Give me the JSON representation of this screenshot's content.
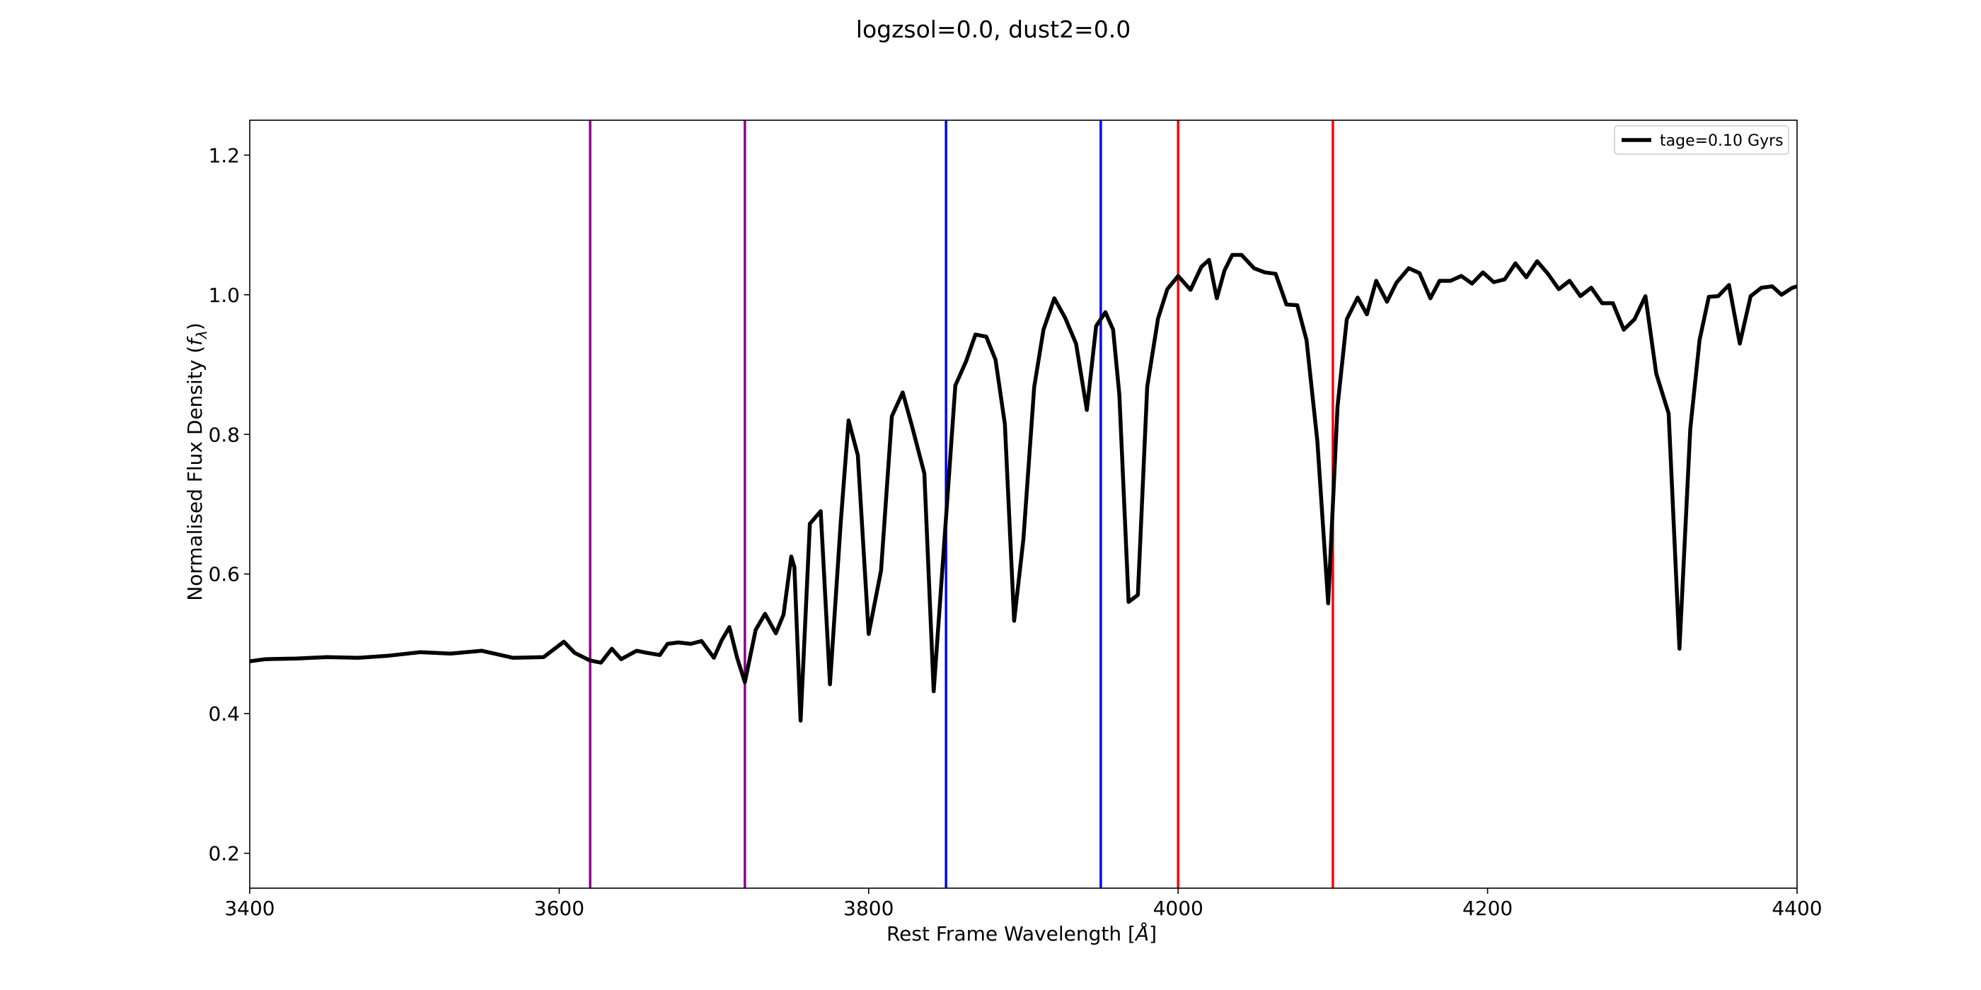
{
  "chart_data": {
    "type": "line",
    "title": "logzsol=0.0, dust2=0.0",
    "xlabel": "Rest Frame Wavelength [Å]",
    "ylabel": "Normalised Flux Density (fλ)",
    "xlim": [
      3400,
      4400
    ],
    "ylim": [
      0.15,
      1.25
    ],
    "xticks": [
      3400,
      3600,
      3800,
      4000,
      4200,
      4400
    ],
    "yticks": [
      0.2,
      0.4,
      0.6,
      0.8,
      1.0,
      1.2
    ],
    "xtick_labels": [
      "3400",
      "3600",
      "3800",
      "4000",
      "4200",
      "4400"
    ],
    "ytick_labels": [
      "0.2",
      "0.4",
      "0.6",
      "0.8",
      "1.0",
      "1.2"
    ],
    "grid": false,
    "legend": {
      "position": "top-right"
    },
    "series": [
      {
        "name": "tage=0.10 Gyrs",
        "color": "#000000",
        "x": [
          3400,
          3410,
          3430,
          3450,
          3470,
          3490,
          3510,
          3530,
          3550,
          3570,
          3590,
          3603,
          3610,
          3620,
          3627,
          3634,
          3640,
          3650,
          3657,
          3665,
          3670,
          3677,
          3685,
          3692,
          3700,
          3705,
          3710,
          3715,
          3720,
          3727,
          3733,
          3740,
          3745,
          3750,
          3752,
          3756,
          3762,
          3769,
          3775,
          3782,
          3787,
          3793,
          3800,
          3808,
          3815,
          3822,
          3828,
          3836,
          3842,
          3849,
          3856,
          3863,
          3869,
          3876,
          3882,
          3888,
          3894,
          3900,
          3907,
          3913,
          3920,
          3927,
          3934,
          3941,
          3947,
          3953,
          3958,
          3962,
          3968,
          3974,
          3980,
          3987,
          3993,
          4000,
          4008,
          4015,
          4020,
          4025,
          4030,
          4035,
          4041,
          4049,
          4056,
          4063,
          4070,
          4077,
          4083,
          4090,
          4097,
          4103,
          4109,
          4116,
          4122,
          4128,
          4135,
          4141,
          4149,
          4156,
          4163,
          4169,
          4176,
          4183,
          4190,
          4197,
          4204,
          4211,
          4218,
          4225,
          4232,
          4239,
          4246,
          4253,
          4260,
          4267,
          4274,
          4281,
          4288,
          4295,
          4302,
          4309,
          4317,
          4324,
          4331,
          4337,
          4343,
          4349,
          4356,
          4363,
          4370,
          4377,
          4384,
          4390,
          4397,
          4400
        ],
        "y": [
          0.475,
          0.478,
          0.479,
          0.481,
          0.48,
          0.483,
          0.488,
          0.486,
          0.49,
          0.48,
          0.481,
          0.503,
          0.487,
          0.476,
          0.473,
          0.493,
          0.478,
          0.49,
          0.487,
          0.484,
          0.5,
          0.502,
          0.5,
          0.504,
          0.48,
          0.505,
          0.524,
          0.48,
          0.445,
          0.52,
          0.543,
          0.515,
          0.542,
          0.625,
          0.61,
          0.39,
          0.672,
          0.69,
          0.442,
          0.675,
          0.82,
          0.77,
          0.514,
          0.605,
          0.826,
          0.86,
          0.812,
          0.744,
          0.432,
          0.65,
          0.87,
          0.905,
          0.943,
          0.94,
          0.907,
          0.815,
          0.533,
          0.65,
          0.868,
          0.95,
          0.995,
          0.967,
          0.93,
          0.835,
          0.955,
          0.975,
          0.95,
          0.857,
          0.56,
          0.57,
          0.868,
          0.966,
          1.008,
          1.027,
          1.007,
          1.04,
          1.05,
          0.995,
          1.035,
          1.057,
          1.057,
          1.038,
          1.032,
          1.03,
          0.986,
          0.985,
          0.935,
          0.79,
          0.558,
          0.84,
          0.965,
          0.996,
          0.972,
          1.02,
          0.99,
          1.017,
          1.038,
          1.031,
          0.995,
          1.02,
          1.02,
          1.027,
          1.016,
          1.032,
          1.018,
          1.022,
          1.045,
          1.025,
          1.048,
          1.03,
          1.008,
          1.02,
          0.998,
          1.01,
          0.988,
          0.988,
          0.95,
          0.965,
          0.998,
          0.887,
          0.83,
          0.493,
          0.808,
          0.935,
          0.997,
          0.998,
          1.014,
          0.93,
          0.998,
          1.01,
          1.012,
          1.0,
          1.01,
          1.012
        ]
      }
    ],
    "vlines": [
      {
        "x": 3620,
        "color": "#8b008b"
      },
      {
        "x": 3720,
        "color": "#8b008b"
      },
      {
        "x": 3850,
        "color": "#0000ff"
      },
      {
        "x": 3950,
        "color": "#0000ff"
      },
      {
        "x": 4000,
        "color": "#ff0000"
      },
      {
        "x": 4100,
        "color": "#ff0000"
      }
    ]
  }
}
